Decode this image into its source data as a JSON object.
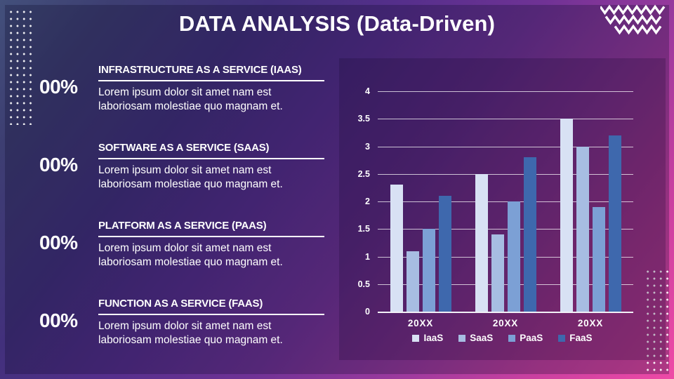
{
  "slide": {
    "title": "DATA ANALYSIS (Data-Driven)"
  },
  "services": [
    {
      "percent": "00%",
      "heading": "INFRASTRUCTURE AS A SERVICE (IAAS)",
      "body": "Lorem ipsum dolor sit amet nam est laboriosam molestiae quo magnam et."
    },
    {
      "percent": "00%",
      "heading": "SOFTWARE AS A SERVICE (SAAS)",
      "body": "Lorem ipsum dolor sit amet nam est laboriosam molestiae quo magnam et."
    },
    {
      "percent": "00%",
      "heading": "PLATFORM AS A SERVICE (PAAS)",
      "body": "Lorem ipsum dolor sit amet nam est laboriosam molestiae quo magnam et."
    },
    {
      "percent": "00%",
      "heading": "FUNCTION AS A SERVICE (FAAS)",
      "body": "Lorem ipsum dolor sit amet nam est laboriosam molestiae quo magnam et."
    }
  ],
  "chart_data": {
    "type": "bar",
    "title": "",
    "xlabel": "",
    "ylabel": "",
    "categories": [
      "20XX",
      "20XX",
      "20XX"
    ],
    "series": [
      {
        "name": "IaaS",
        "color": "#d8e1f4",
        "values": [
          2.3,
          2.5,
          3.5
        ]
      },
      {
        "name": "SaaS",
        "color": "#a7bde2",
        "values": [
          1.1,
          1.4,
          3.0
        ]
      },
      {
        "name": "PaaS",
        "color": "#7ca0d5",
        "values": [
          1.5,
          2.0,
          1.9
        ]
      },
      {
        "name": "FaaS",
        "color": "#3e68ad",
        "values": [
          2.1,
          2.8,
          3.2
        ]
      }
    ],
    "ylim": [
      0,
      4
    ],
    "yticks": [
      "0",
      "0.5",
      "1",
      "1.5",
      "2",
      "2.5",
      "3",
      "3.5",
      "4"
    ],
    "grid": true,
    "legend_position": "bottom"
  },
  "colors": {
    "text": "#ffffff",
    "background_start": "#43507b",
    "background_end": "#ee4aa6"
  }
}
